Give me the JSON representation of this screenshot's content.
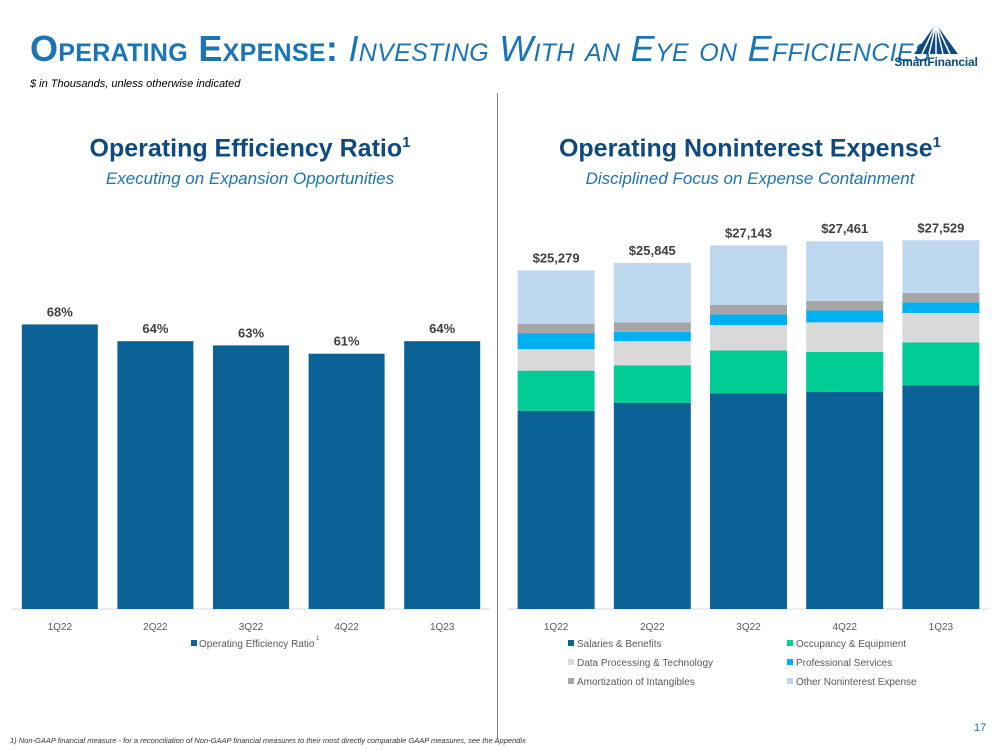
{
  "header": {
    "title_main": "Operating Expense:",
    "title_sub": "Investing With an Eye on Efficiencies",
    "units_note": "$ in Thousands, unless otherwise indicated",
    "logo_text": "SmartFinancial"
  },
  "left_panel": {
    "title": "Operating Efficiency Ratio",
    "title_sup": "1",
    "subtitle": "Executing on Expansion Opportunities"
  },
  "right_panel": {
    "title": "Operating Noninterest Expense",
    "title_sup": "1",
    "subtitle": "Disciplined Focus on Expense Containment"
  },
  "footnote": "1) Non-GAAP financial measure - for a reconciliation of Non-GAAP financial measures to their most directly comparable GAAP measures, see the Appendix",
  "page_number": "17",
  "chart_data": [
    {
      "type": "bar",
      "categories": [
        "1Q22",
        "2Q22",
        "3Q22",
        "4Q22",
        "1Q23"
      ],
      "series": [
        {
          "name": "Operating Efficiency Ratio",
          "values": [
            68,
            64,
            63,
            61,
            64
          ],
          "labels": [
            "68%",
            "64%",
            "63%",
            "61%",
            "64%"
          ]
        }
      ],
      "legend_sup": "1",
      "legend": "bottom",
      "ylim": [
        0,
        92
      ],
      "colors": [
        "#0b6296"
      ]
    },
    {
      "type": "bar",
      "stacked": true,
      "categories": [
        "1Q22",
        "2Q22",
        "3Q22",
        "4Q22",
        "1Q23"
      ],
      "totals": [
        25279,
        25845,
        27143,
        27461,
        27529
      ],
      "total_labels": [
        "$25,279",
        "$25,845",
        "$27,143",
        "$27,461",
        "$27,529"
      ],
      "series": [
        {
          "name": "Salaries & Benefits",
          "color": "#0b6296",
          "values": [
            14800,
            15400,
            16100,
            16200,
            16700
          ]
        },
        {
          "name": "Occupancy & Equipment",
          "color": "#00cc96",
          "values": [
            3000,
            2800,
            3200,
            3000,
            3200
          ]
        },
        {
          "name": "Data Processing & Technology",
          "color": "#d9d9d9",
          "values": [
            1600,
            1800,
            1900,
            2200,
            2200
          ]
        },
        {
          "name": "Professional Services",
          "color": "#00b0f0",
          "values": [
            1200,
            700,
            800,
            900,
            800
          ]
        },
        {
          "name": "Amortization of Intangibles",
          "color": "#a6a6a6",
          "values": [
            700,
            700,
            700,
            700,
            700
          ]
        },
        {
          "name": "Other Noninterest Expense",
          "color": "#bdd7ee",
          "values": [
            3979,
            4445,
            4443,
            4461,
            3929
          ]
        }
      ],
      "legend": "bottom",
      "ylim": [
        0,
        28000
      ]
    }
  ]
}
